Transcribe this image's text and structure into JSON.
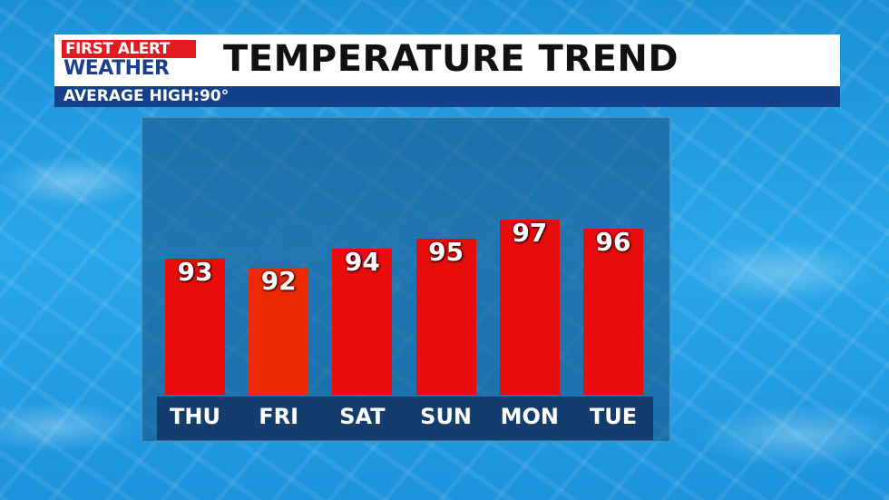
{
  "header": {
    "logo_line1": "FIRST ALERT",
    "logo_line2": "WEATHER",
    "title": "TEMPERATURE TREND",
    "subtitle": "AVERAGE HIGH:90°"
  },
  "colors": {
    "bar": "#e80d0a",
    "bar_alt": "#ee2a05",
    "header_bar": "#14408a",
    "label_bar": "#143d6e"
  },
  "chart_data": {
    "type": "bar",
    "categories": [
      "THU",
      "FRI",
      "SAT",
      "SUN",
      "MON",
      "TUE"
    ],
    "values": [
      93,
      92,
      94,
      95,
      97,
      96
    ],
    "title": "TEMPERATURE TREND",
    "xlabel": "",
    "ylabel": "",
    "grid": false
  }
}
